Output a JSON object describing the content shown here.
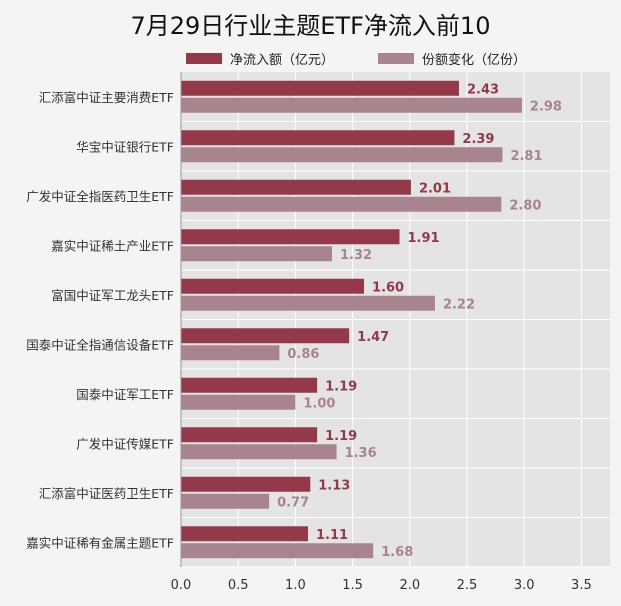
{
  "chart_data": {
    "type": "bar",
    "title": "7月29日行业主题ETF净流入前10",
    "categories": [
      "汇添富中证主要消费ETF",
      "华宝中证银行ETF",
      "广发中证全指医药卫生ETF",
      "嘉实中证稀土产业ETF",
      "富国中证军工龙头ETF",
      "国泰中证全指通信设备ETF",
      "国泰中证军工ETF",
      "广发中证传媒ETF",
      "汇添富中证医药卫生ETF",
      "嘉实中证稀有金属主题ETF"
    ],
    "series": [
      {
        "name": "净流入额（亿元）",
        "color": "#93394a",
        "values": [
          2.43,
          2.39,
          2.01,
          1.91,
          1.6,
          1.47,
          1.19,
          1.19,
          1.13,
          1.11
        ],
        "labels": [
          "2.43",
          "2.39",
          "2.01",
          "1.91",
          "1.60",
          "1.47",
          "1.19",
          "1.19",
          "1.13",
          "1.11"
        ]
      },
      {
        "name": "份额变化（亿份）",
        "color": "#a8858e",
        "values": [
          2.98,
          2.81,
          2.8,
          1.32,
          2.22,
          0.86,
          1.0,
          1.36,
          0.77,
          1.68
        ],
        "labels": [
          "2.98",
          "2.81",
          "2.80",
          "1.32",
          "2.22",
          "0.86",
          "1.00",
          "1.36",
          "0.77",
          "1.68"
        ]
      }
    ],
    "xlim": [
      0,
      3.75
    ],
    "xticks": [
      "0.0",
      "0.5",
      "1.0",
      "1.5",
      "2.0",
      "2.5",
      "3.0",
      "3.5"
    ],
    "legend_position": "top",
    "grid": true,
    "orientation": "horizontal"
  }
}
